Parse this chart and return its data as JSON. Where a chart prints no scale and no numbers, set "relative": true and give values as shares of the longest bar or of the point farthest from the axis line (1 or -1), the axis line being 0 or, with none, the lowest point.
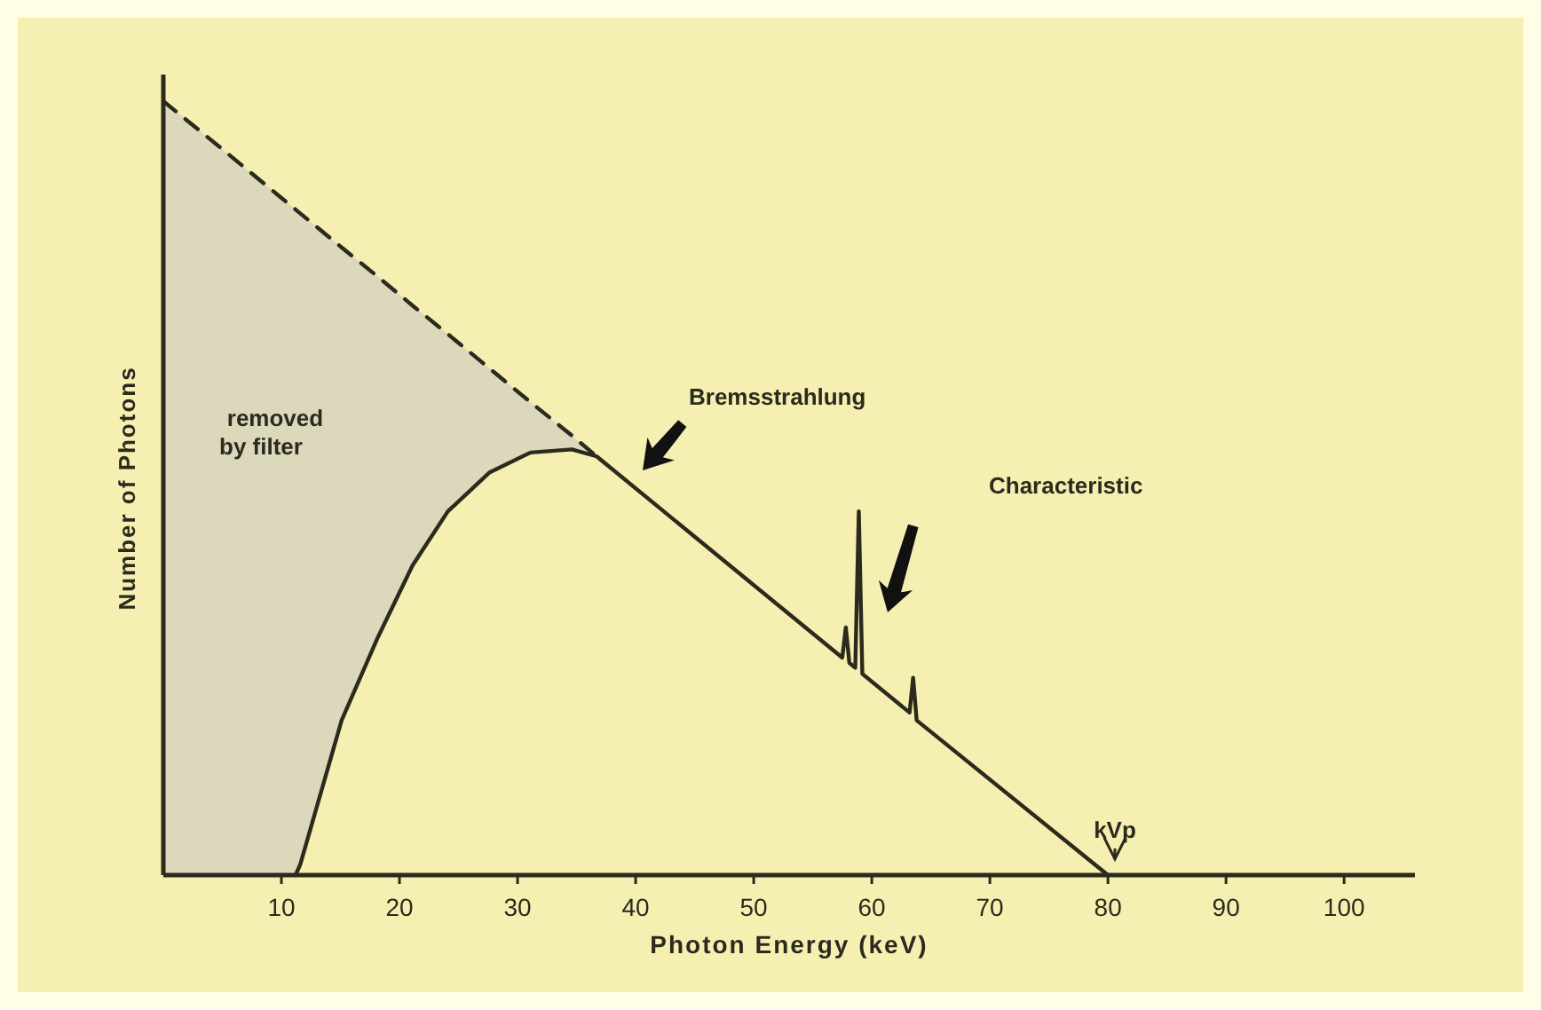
{
  "chart_data": {
    "type": "line",
    "relative": true,
    "xlabel": "Photon Energy (keV)",
    "ylabel": "Number of Photons",
    "xlim": [
      0,
      106
    ],
    "xticks": [
      10,
      20,
      30,
      40,
      50,
      60,
      70,
      80,
      90,
      100
    ],
    "grid": false,
    "marker": "none",
    "series": [
      {
        "color": "#2b2a1c",
        "line_style": "dashed",
        "x": [
          0,
          5,
          10,
          11.2,
          15.1,
          18.1,
          21.1,
          24.1,
          27.6,
          31.1,
          34.6,
          36.7
        ],
        "values": [
          1,
          0.938,
          0.875,
          0.86,
          0.811,
          0.774,
          0.736,
          0.699,
          0.655,
          0.611,
          0.568,
          0.541
        ],
        "lower": [
          0,
          0,
          0,
          0,
          0.2,
          0.305,
          0.4,
          0.47,
          0.52,
          0.546,
          0.55,
          0.541
        ],
        "upper": [
          1,
          0.938,
          0.875,
          0.86,
          0.811,
          0.774,
          0.736,
          0.699,
          0.655,
          0.611,
          0.568,
          0.541
        ]
      },
      {
        "color": "#2b2a1c",
        "line_style": "solid",
        "x": [
          11.2,
          11.6,
          15.1,
          18.1,
          21.1,
          24.1,
          27.6,
          31.1,
          34.6,
          36.7,
          57.5,
          57.8,
          58.1,
          58.6,
          58.9,
          59.2,
          63.2,
          63.5,
          63.8,
          80
        ],
        "values": [
          0,
          0.014,
          0.2,
          0.305,
          0.4,
          0.47,
          0.52,
          0.546,
          0.55,
          0.541,
          0.281,
          0.32,
          0.274,
          0.268,
          0.47,
          0.26,
          0.21,
          0.255,
          0.2,
          0
        ]
      }
    ],
    "annotations": [
      "removed by filter",
      "Bremsstrahlung",
      "Characteristic",
      "kVp"
    ]
  }
}
